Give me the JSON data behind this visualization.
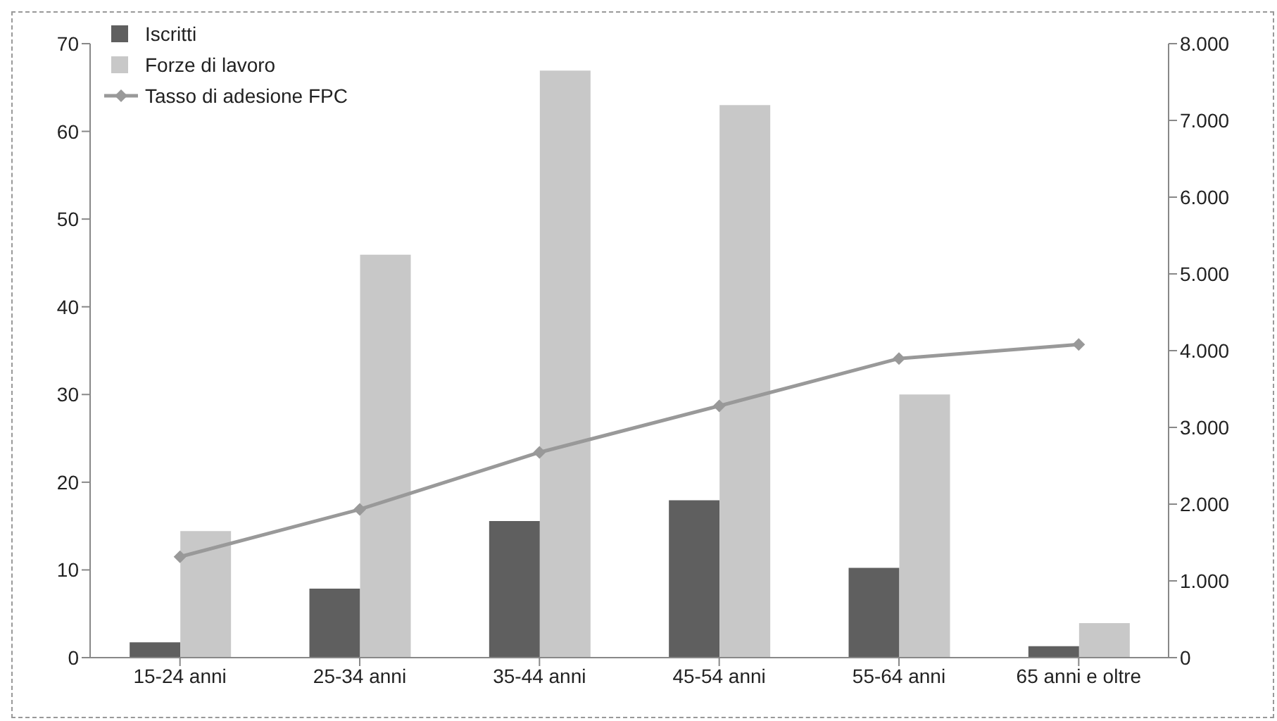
{
  "chart_data": {
    "type": "bar",
    "categories": [
      "15-24 anni",
      "25-34 anni",
      "35-44 anni",
      "45-54 anni",
      "55-64 anni",
      "65 anni e oltre"
    ],
    "series": [
      {
        "name": "Iscritti",
        "axis": "y2",
        "color": "#5f5f5f",
        "values": [
          200,
          900,
          1780,
          2050,
          1170,
          150
        ]
      },
      {
        "name": "Forze di lavoro",
        "axis": "y2",
        "color": "#c8c8c8",
        "values": [
          1650,
          5250,
          7650,
          7200,
          3430,
          450
        ]
      },
      {
        "name": "Tasso di adesione FPC",
        "type": "line",
        "axis": "y",
        "color": "#999999",
        "marker": "diamond",
        "values": [
          11.5,
          16.9,
          23.4,
          28.7,
          34.1,
          35.7
        ]
      }
    ],
    "ylim": [
      0,
      70
    ],
    "yticks": [
      0,
      10,
      20,
      30,
      40,
      50,
      60,
      70
    ],
    "y2lim": [
      0,
      8000
    ],
    "y2ticks": [
      0,
      {
        "value": 1000,
        "label": "1.000"
      },
      {
        "value": 2000,
        "label": "2.000"
      },
      {
        "value": 3000,
        "label": "3.000"
      },
      {
        "value": 4000,
        "label": "4.000"
      },
      {
        "value": 5000,
        "label": "5.000"
      },
      {
        "value": 6000,
        "label": "6.000"
      },
      {
        "value": 7000,
        "label": "7.000"
      },
      {
        "value": 8000,
        "label": "8.000"
      }
    ],
    "grid": false,
    "legend": "top left"
  }
}
